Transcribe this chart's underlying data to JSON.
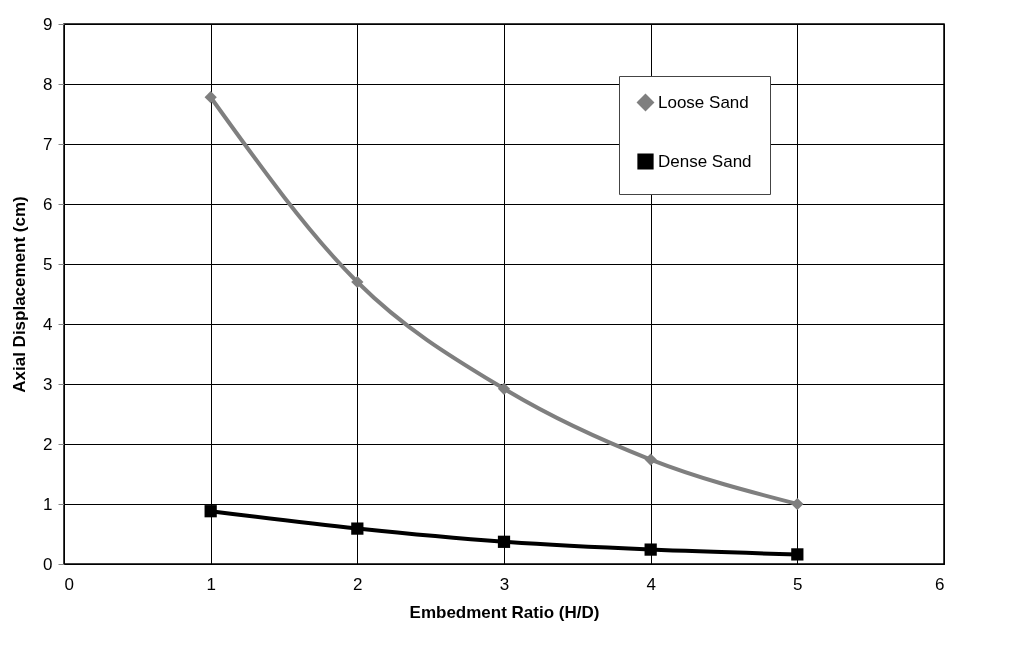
{
  "chart_data": {
    "type": "line",
    "xlabel": "Embedment Ratio (H/D)",
    "ylabel": "Axial Displacement (cm)",
    "x": [
      1,
      2,
      3,
      4,
      5
    ],
    "series": [
      {
        "name": "Loose Sand",
        "color": "#7f7f7f",
        "marker": "diamond",
        "values": [
          7.78,
          4.7,
          2.92,
          1.74,
          1.0
        ]
      },
      {
        "name": "Dense Sand",
        "color": "#000000",
        "marker": "square",
        "values": [
          0.88,
          0.59,
          0.37,
          0.24,
          0.16
        ]
      }
    ],
    "xlim": [
      0,
      6
    ],
    "xticks": [
      0,
      1,
      2,
      3,
      4,
      5,
      6
    ],
    "ylim": [
      0,
      9
    ],
    "yticks": [
      0,
      1,
      2,
      3,
      4,
      5,
      6,
      7,
      8,
      9
    ],
    "grid": true,
    "legend": "top right",
    "line_style": "solid"
  }
}
